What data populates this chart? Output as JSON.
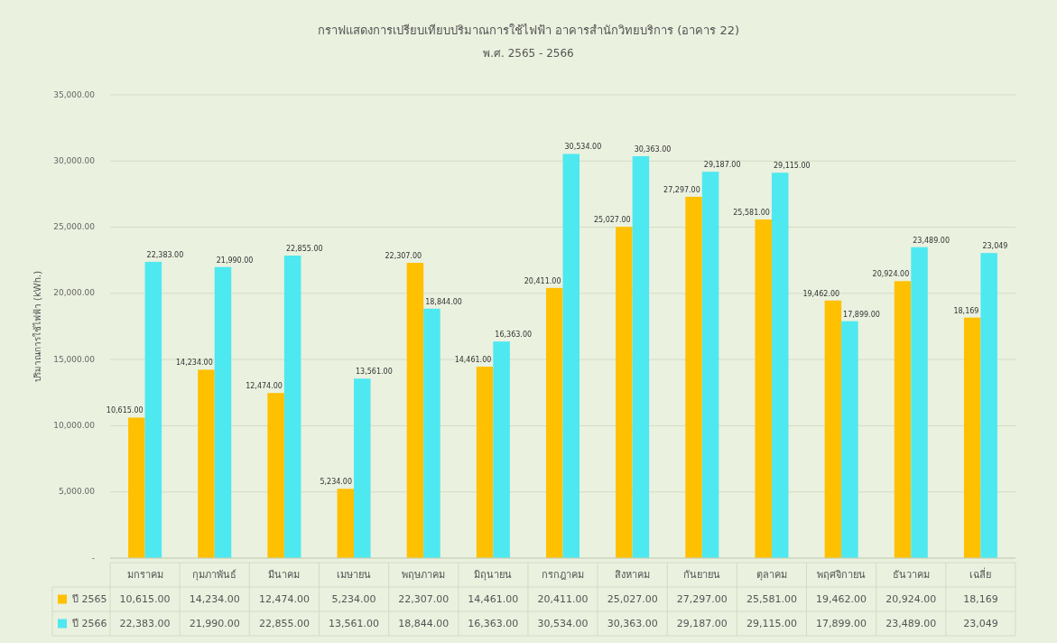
{
  "chart_data": {
    "type": "bar",
    "title": "กราฟแสดงการเปรียบเทียบปริมาณการใช้ไฟฟ้า อาคารสำนักวิทยบริการ (อาคาร 22)",
    "subtitle": "พ.ศ. 2565 - 2566",
    "ylabel": "ปริมาณการใช้ไฟฟ้า (kWh.)",
    "categories": [
      "มกราคม",
      "กุมภาพันธ์",
      "มีนาคม",
      "เมษายน",
      "พฤษภาคม",
      "มิถุนายน",
      "กรกฎาคม",
      "สิงหาคม",
      "กันยายน",
      "ตุลาคม",
      "พฤศจิกายน",
      "ธันวาคม",
      "เฉลี่ย"
    ],
    "series": [
      {
        "name": "ปี 2565",
        "color": "#ffc000",
        "values": [
          10615,
          14234,
          12474,
          5234,
          22307,
          14461,
          20411,
          25027,
          27297,
          25581,
          19462,
          20924,
          18169
        ],
        "value_labels": [
          "10,615.00",
          "14,234.00",
          "12,474.00",
          "5,234.00",
          "22,307.00",
          "14,461.00",
          "20,411.00",
          "25,027.00",
          "27,297.00",
          "25,581.00",
          "19,462.00",
          "20,924.00",
          "18,169"
        ]
      },
      {
        "name": "ปี 2566",
        "color": "#4ee8f0",
        "values": [
          22383,
          21990,
          22855,
          13561,
          18844,
          16363,
          30534,
          30363,
          29187,
          29115,
          17899,
          23489,
          23049
        ],
        "value_labels": [
          "22,383.00",
          "21,990.00",
          "22,855.00",
          "13,561.00",
          "18,844.00",
          "16,363.00",
          "30,534.00",
          "30,363.00",
          "29,187.00",
          "29,115.00",
          "17,899.00",
          "23,489.00",
          "23,049"
        ]
      }
    ],
    "ylim": [
      0,
      35000
    ],
    "yticks": [
      {
        "value": 0,
        "label": "-"
      },
      {
        "value": 5000,
        "label": "5,000.00"
      },
      {
        "value": 10000,
        "label": "10,000.00"
      },
      {
        "value": 15000,
        "label": "15,000.00"
      },
      {
        "value": 20000,
        "label": "20,000.00"
      },
      {
        "value": 25000,
        "label": "25,000.00"
      },
      {
        "value": 30000,
        "label": "30,000.00"
      },
      {
        "value": 35000,
        "label": "35,000.00"
      }
    ],
    "grid": "y",
    "legend": "bottom"
  }
}
